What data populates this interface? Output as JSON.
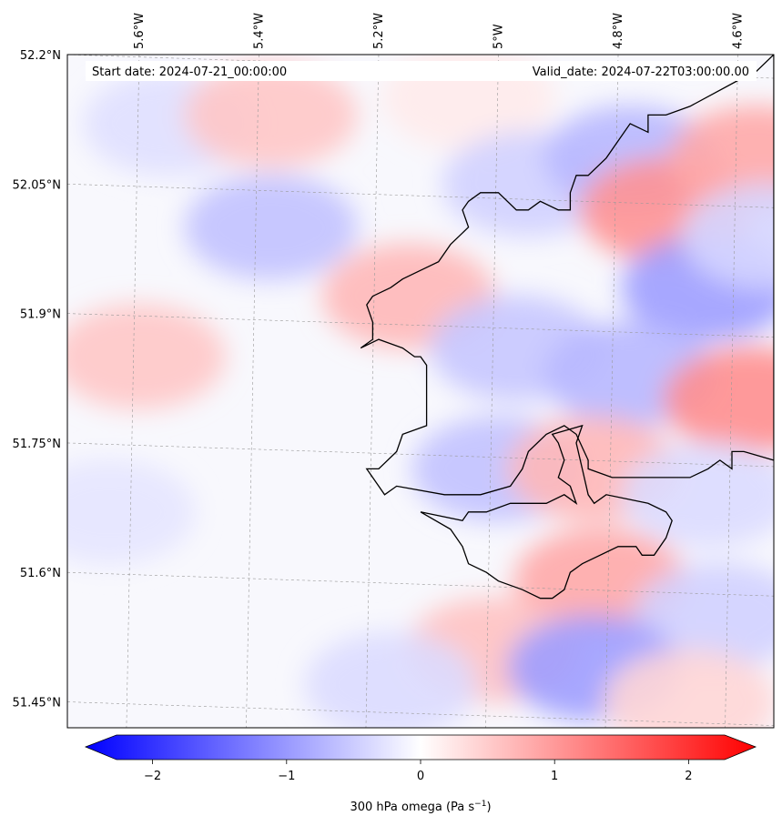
{
  "map": {
    "lon_range": [
      -5.72,
      -4.54
    ],
    "lat_range": [
      51.42,
      52.2
    ],
    "lon_ticks": [
      {
        "value": -5.6,
        "label": "5.6°W"
      },
      {
        "value": -5.4,
        "label": "5.4°W"
      },
      {
        "value": -5.2,
        "label": "5.2°W"
      },
      {
        "value": -5.0,
        "label": "5°W"
      },
      {
        "value": -4.8,
        "label": "4.8°W"
      },
      {
        "value": -4.6,
        "label": "4.6°W"
      }
    ],
    "lat_ticks": [
      {
        "value": 52.2,
        "label": "52.2°N"
      },
      {
        "value": 52.05,
        "label": "52.05°N"
      },
      {
        "value": 51.9,
        "label": "51.9°N"
      },
      {
        "value": 51.75,
        "label": "51.75°N"
      },
      {
        "value": 51.6,
        "label": "51.6°N"
      },
      {
        "value": 51.45,
        "label": "51.45°N"
      }
    ],
    "gridlines": true,
    "start_date": "Start date: 2024-07-21_00:00:00",
    "valid_date": "Valid_date: 2024-07-22T03:00:00.00",
    "field": {
      "name": "300 hPa omega",
      "cells": [
        {
          "lon": -5.55,
          "lat": 52.12,
          "value": -0.3
        },
        {
          "lon": -5.38,
          "lat": 52.13,
          "value": 0.55
        },
        {
          "lon": -5.05,
          "lat": 52.15,
          "value": 0.2
        },
        {
          "lon": -4.95,
          "lat": 52.05,
          "value": -0.45
        },
        {
          "lon": -4.78,
          "lat": 52.08,
          "value": -0.7
        },
        {
          "lon": -4.72,
          "lat": 52.02,
          "value": 1.05
        },
        {
          "lon": -4.57,
          "lat": 52.08,
          "value": 0.85
        },
        {
          "lon": -5.38,
          "lat": 52.0,
          "value": -0.6
        },
        {
          "lon": -5.15,
          "lat": 51.92,
          "value": 0.7
        },
        {
          "lon": -4.65,
          "lat": 51.93,
          "value": -0.95
        },
        {
          "lon": -4.55,
          "lat": 51.99,
          "value": -0.4
        },
        {
          "lon": -5.6,
          "lat": 51.85,
          "value": 0.55
        },
        {
          "lon": -4.97,
          "lat": 51.86,
          "value": -0.55
        },
        {
          "lon": -4.78,
          "lat": 51.83,
          "value": -0.7
        },
        {
          "lon": -4.58,
          "lat": 51.8,
          "value": 1.1
        },
        {
          "lon": -5.0,
          "lat": 51.72,
          "value": -0.6
        },
        {
          "lon": -4.84,
          "lat": 51.72,
          "value": 0.7
        },
        {
          "lon": -4.65,
          "lat": 51.69,
          "value": -0.35
        },
        {
          "lon": -5.65,
          "lat": 51.67,
          "value": -0.25
        },
        {
          "lon": -4.83,
          "lat": 51.59,
          "value": 0.85
        },
        {
          "lon": -4.63,
          "lat": 51.55,
          "value": -0.45
        },
        {
          "lon": -5.01,
          "lat": 51.51,
          "value": 0.6
        },
        {
          "lon": -4.84,
          "lat": 51.49,
          "value": -0.95
        },
        {
          "lon": -5.18,
          "lat": 51.47,
          "value": -0.35
        },
        {
          "lon": -4.68,
          "lat": 51.45,
          "value": 0.4
        }
      ]
    },
    "coastline": [
      [
        -5.23,
        51.86
      ],
      [
        -5.2,
        51.87
      ],
      [
        -5.16,
        51.86
      ],
      [
        -5.14,
        51.85
      ],
      [
        -5.13,
        51.85
      ],
      [
        -5.12,
        51.84
      ],
      [
        -5.12,
        51.8
      ],
      [
        -5.12,
        51.77
      ],
      [
        -5.16,
        51.76
      ],
      [
        -5.17,
        51.74
      ],
      [
        -5.2,
        51.72
      ],
      [
        -5.22,
        51.72
      ],
      [
        -5.2,
        51.7
      ],
      [
        -5.19,
        51.69
      ],
      [
        -5.17,
        51.7
      ],
      [
        -5.09,
        51.69
      ],
      [
        -5.03,
        51.69
      ],
      [
        -4.98,
        51.7
      ],
      [
        -4.96,
        51.72
      ],
      [
        -4.95,
        51.74
      ],
      [
        -4.92,
        51.76
      ],
      [
        -4.89,
        51.77
      ],
      [
        -4.87,
        51.76
      ],
      [
        -4.85,
        51.73
      ],
      [
        -4.85,
        51.72
      ],
      [
        -4.81,
        51.71
      ],
      [
        -4.72,
        51.71
      ],
      [
        -4.68,
        51.71
      ],
      [
        -4.65,
        51.72
      ],
      [
        -4.63,
        51.73
      ],
      [
        -4.61,
        51.72
      ],
      [
        -4.61,
        51.74
      ],
      [
        -4.59,
        51.74
      ],
      [
        -4.54,
        51.73
      ],
      [
        -4.54,
        52.2
      ],
      [
        -4.57,
        52.18
      ],
      [
        -4.6,
        52.17
      ],
      [
        -4.68,
        52.14
      ],
      [
        -4.72,
        52.13
      ],
      [
        -4.75,
        52.13
      ],
      [
        -4.75,
        52.11
      ],
      [
        -4.78,
        52.12
      ],
      [
        -4.8,
        52.1
      ],
      [
        -4.82,
        52.08
      ],
      [
        -4.85,
        52.06
      ],
      [
        -4.87,
        52.06
      ],
      [
        -4.88,
        52.04
      ],
      [
        -4.88,
        52.02
      ],
      [
        -4.9,
        52.02
      ],
      [
        -4.93,
        52.03
      ],
      [
        -4.95,
        52.02
      ],
      [
        -4.97,
        52.02
      ],
      [
        -5.0,
        52.04
      ],
      [
        -5.03,
        52.04
      ],
      [
        -5.05,
        52.03
      ],
      [
        -5.06,
        52.02
      ],
      [
        -5.05,
        52.0
      ],
      [
        -5.08,
        51.98
      ],
      [
        -5.1,
        51.96
      ],
      [
        -5.13,
        51.95
      ],
      [
        -5.16,
        51.94
      ],
      [
        -5.18,
        51.93
      ],
      [
        -5.21,
        51.92
      ],
      [
        -5.22,
        51.91
      ],
      [
        -5.21,
        51.89
      ],
      [
        -5.21,
        51.87
      ],
      [
        -5.23,
        51.86
      ]
    ],
    "coastline_inner": [
      [
        -5.13,
        51.67
      ],
      [
        -5.06,
        51.66
      ],
      [
        -5.05,
        51.67
      ],
      [
        -5.02,
        51.67
      ],
      [
        -4.98,
        51.68
      ],
      [
        -4.92,
        51.68
      ],
      [
        -4.89,
        51.69
      ],
      [
        -4.87,
        51.68
      ],
      [
        -4.88,
        51.7
      ],
      [
        -4.9,
        51.71
      ],
      [
        -4.89,
        51.73
      ],
      [
        -4.9,
        51.75
      ],
      [
        -4.91,
        51.76
      ],
      [
        -4.86,
        51.77
      ],
      [
        -4.87,
        51.75
      ],
      [
        -4.86,
        51.72
      ],
      [
        -4.85,
        51.69
      ],
      [
        -4.84,
        51.68
      ],
      [
        -4.82,
        51.69
      ],
      [
        -4.75,
        51.68
      ],
      [
        -4.72,
        51.67
      ],
      [
        -4.71,
        51.66
      ],
      [
        -4.72,
        51.64
      ],
      [
        -4.74,
        51.62
      ],
      [
        -4.76,
        51.62
      ],
      [
        -4.77,
        51.63
      ],
      [
        -4.8,
        51.63
      ],
      [
        -4.86,
        51.61
      ],
      [
        -4.88,
        51.6
      ],
      [
        -4.89,
        51.58
      ],
      [
        -4.91,
        51.57
      ],
      [
        -4.93,
        51.57
      ],
      [
        -4.96,
        51.58
      ],
      [
        -5.0,
        51.59
      ],
      [
        -5.02,
        51.6
      ],
      [
        -5.05,
        51.61
      ],
      [
        -5.06,
        51.63
      ],
      [
        -5.08,
        51.65
      ],
      [
        -5.13,
        51.67
      ]
    ]
  },
  "colorbar": {
    "min": -2.5,
    "max": 2.5,
    "ticks": [
      {
        "value": -2,
        "label": "−2"
      },
      {
        "value": -1,
        "label": "−1"
      },
      {
        "value": 0,
        "label": "0"
      },
      {
        "value": 1,
        "label": "1"
      },
      {
        "value": 2,
        "label": "2"
      }
    ],
    "label_prefix": "300 hPa omega (Pa s",
    "label_exponent": "−1",
    "label_suffix": ")",
    "colors": {
      "low": "#0000ff",
      "mid": "#ffffff",
      "high": "#ff0000"
    }
  }
}
